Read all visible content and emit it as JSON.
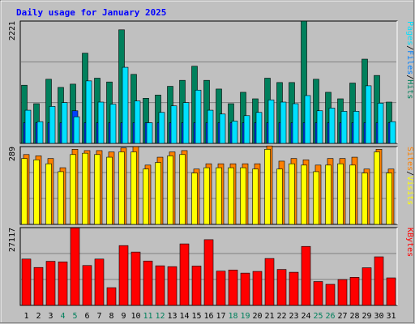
{
  "title": "Daily usage for January 2025",
  "colors": {
    "background": "#c0c0c0",
    "title": "#0000ff",
    "hits": "#00805c",
    "files": "#00c0ff",
    "pages": "#00e0ff",
    "visits": "#ffff00",
    "sites": "#ff8000",
    "kbytes": "#ff0000",
    "weekend_label": "#00805c"
  },
  "chart_data": [
    {
      "type": "bar",
      "name": "hits-files-pages",
      "ymax_label": "2221",
      "ylim": [
        0,
        2221
      ],
      "legend": [
        {
          "text": "Pages",
          "color": "#00e0ff"
        },
        {
          "text": "/",
          "color": "#000000"
        },
        {
          "text": "Files",
          "color": "#0080ff"
        },
        {
          "text": "/",
          "color": "#000000"
        },
        {
          "text": "Hits",
          "color": "#00805c"
        }
      ],
      "x": [
        1,
        2,
        3,
        4,
        5,
        6,
        7,
        8,
        9,
        10,
        11,
        12,
        13,
        14,
        15,
        16,
        17,
        18,
        19,
        20,
        21,
        22,
        23,
        24,
        25,
        26,
        27,
        28,
        29,
        30,
        31
      ],
      "series": [
        {
          "name": "Hits",
          "values": [
            1070,
            730,
            1180,
            1030,
            1090,
            1660,
            1200,
            1130,
            2090,
            1270,
            830,
            890,
            1050,
            1160,
            1420,
            1160,
            1000,
            730,
            940,
            820,
            1200,
            1120,
            1120,
            2250,
            1180,
            940,
            820,
            1110,
            1550,
            1250,
            760
          ]
        },
        {
          "name": "Files",
          "values": [
            380,
            380,
            380,
            380,
            600,
            380,
            380,
            380,
            380,
            380,
            380,
            380,
            380,
            380,
            380,
            380,
            380,
            380,
            380,
            380,
            380,
            380,
            380,
            380,
            380,
            380,
            380,
            380,
            380,
            380,
            380
          ]
        },
        {
          "name": "Pages",
          "values": [
            610,
            400,
            680,
            750,
            490,
            1150,
            760,
            720,
            1400,
            780,
            380,
            570,
            690,
            750,
            980,
            610,
            540,
            410,
            510,
            570,
            800,
            760,
            730,
            880,
            600,
            650,
            590,
            590,
            1060,
            740,
            400
          ]
        }
      ]
    },
    {
      "type": "bar",
      "name": "visits-sites",
      "ymax_label": "289",
      "ylim": [
        0,
        289
      ],
      "legend": [
        {
          "text": "Sites",
          "color": "#ff8000"
        },
        {
          "text": "/",
          "color": "#000000"
        },
        {
          "text": "Visits",
          "color": "#ffff00"
        }
      ],
      "x": [
        1,
        2,
        3,
        4,
        5,
        6,
        7,
        8,
        9,
        10,
        11,
        12,
        13,
        14,
        15,
        16,
        17,
        18,
        19,
        20,
        21,
        22,
        23,
        24,
        25,
        26,
        27,
        28,
        29,
        30,
        31
      ],
      "series": [
        {
          "name": "Visits",
          "values": [
            250,
            245,
            230,
            200,
            265,
            270,
            265,
            255,
            275,
            275,
            210,
            235,
            260,
            265,
            195,
            215,
            215,
            215,
            215,
            210,
            285,
            210,
            230,
            225,
            200,
            225,
            230,
            225,
            195,
            275,
            195
          ]
        },
        {
          "name": "Sites",
          "values": [
            265,
            260,
            250,
            215,
            285,
            280,
            280,
            275,
            290,
            295,
            225,
            255,
            275,
            280,
            210,
            230,
            230,
            230,
            230,
            230,
            300,
            240,
            250,
            245,
            225,
            250,
            250,
            255,
            210,
            285,
            210
          ]
        }
      ]
    },
    {
      "type": "bar",
      "name": "kbytes",
      "ymax_label": "27117",
      "ylim": [
        0,
        27117
      ],
      "legend": [
        {
          "text": "KBytes",
          "color": "#ff0000"
        }
      ],
      "x": [
        1,
        2,
        3,
        4,
        5,
        6,
        7,
        8,
        9,
        10,
        11,
        12,
        13,
        14,
        15,
        16,
        17,
        18,
        19,
        20,
        21,
        22,
        23,
        24,
        25,
        26,
        27,
        28,
        29,
        30,
        31
      ],
      "series": [
        {
          "name": "KBytes",
          "values": [
            16500,
            13500,
            15700,
            15500,
            27600,
            14200,
            16500,
            6300,
            21300,
            19000,
            15800,
            14100,
            13800,
            21900,
            14000,
            23400,
            12200,
            12600,
            11500,
            12100,
            16700,
            12800,
            11800,
            21000,
            8500,
            7500,
            9200,
            10000,
            13400,
            17300,
            9800
          ]
        }
      ]
    }
  ],
  "x_labels": [
    "1",
    "2",
    "3",
    "4",
    "5",
    "6",
    "7",
    "8",
    "9",
    "10",
    "11",
    "12",
    "13",
    "14",
    "15",
    "16",
    "17",
    "18",
    "19",
    "20",
    "21",
    "22",
    "23",
    "24",
    "25",
    "26",
    "27",
    "28",
    "29",
    "30",
    "31"
  ],
  "weekend_days": [
    4,
    5,
    11,
    12,
    18,
    19,
    25,
    26
  ]
}
